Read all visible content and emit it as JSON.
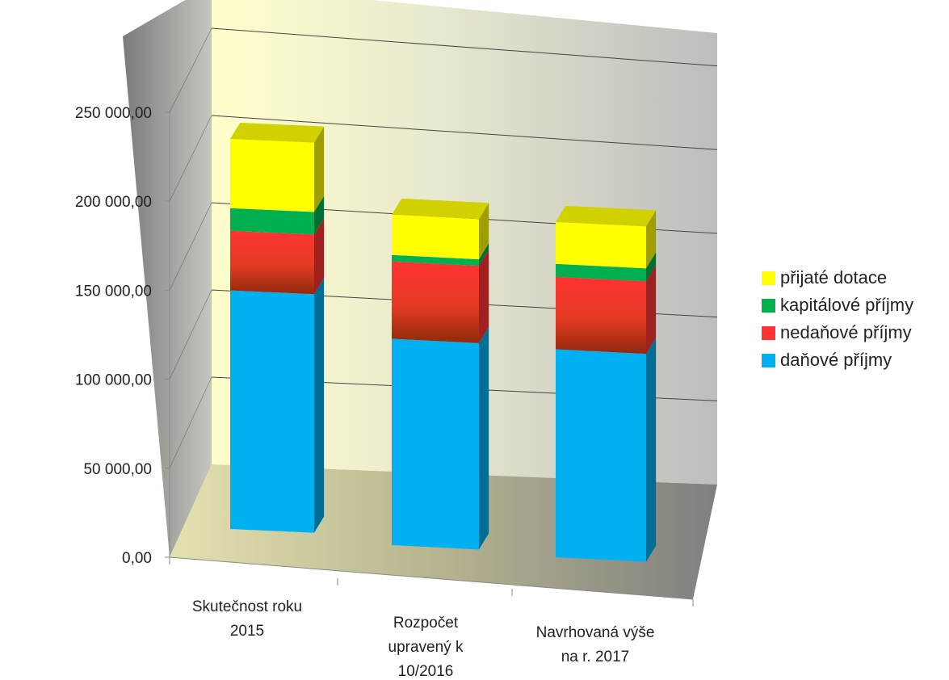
{
  "chart_data": {
    "type": "bar",
    "stacked": true,
    "three_d": true,
    "categories": [
      [
        "Skutečnost roku",
        "2015"
      ],
      [
        "Rozpočet",
        "upravený k",
        "10/2016"
      ],
      [
        "Navrhovaná výše",
        "na r. 2017"
      ]
    ],
    "series": [
      {
        "name": "daňové příjmy",
        "color": "#00b0f0",
        "values": [
          148000,
          128000,
          129000
        ]
      },
      {
        "name": "nedaňové příjmy",
        "color": "#ff3333",
        "values": [
          37000,
          48000,
          45000
        ]
      },
      {
        "name": "kapitálové příjmy",
        "color": "#00b050",
        "values": [
          14000,
          4000,
          8000
        ]
      },
      {
        "name": "přijaté dotace",
        "color": "#ffff00",
        "values": [
          43000,
          25000,
          26000
        ]
      }
    ],
    "y_ticks": [
      "0,00",
      "50 000,00",
      "100 000,00",
      "150 000,00",
      "200 000,00",
      "250 000,00"
    ],
    "ylim": [
      0,
      250000
    ],
    "legend_position": "right",
    "grid": true
  }
}
